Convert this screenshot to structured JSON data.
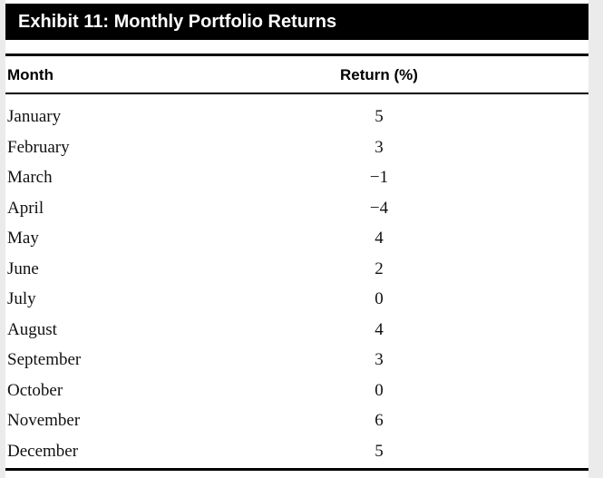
{
  "exhibit": {
    "title": "Exhibit 11: Monthly Portfolio Returns"
  },
  "table": {
    "headers": [
      "Month",
      "Return (%)"
    ],
    "rows": [
      {
        "month": "January",
        "return": "5"
      },
      {
        "month": "February",
        "return": "3"
      },
      {
        "month": "March",
        "return": "−1"
      },
      {
        "month": "April",
        "return": "−4"
      },
      {
        "month": "May",
        "return": "4"
      },
      {
        "month": "June",
        "return": "2"
      },
      {
        "month": "July",
        "return": "0"
      },
      {
        "month": "August",
        "return": "4"
      },
      {
        "month": "September",
        "return": "3"
      },
      {
        "month": "October",
        "return": "0"
      },
      {
        "month": "November",
        "return": "6"
      },
      {
        "month": "December",
        "return": "5"
      }
    ]
  },
  "colors": {
    "title_bar_bg": "#000000",
    "title_text": "#ffffff",
    "page_bg": "#ebebeb",
    "sheet_bg": "#ffffff"
  }
}
